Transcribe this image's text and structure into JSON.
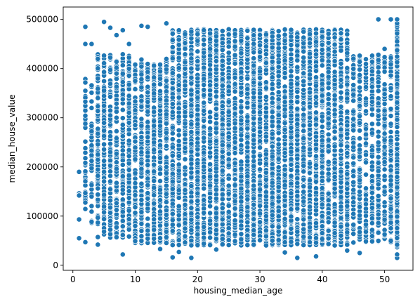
{
  "chart_data": {
    "type": "scatter",
    "title": "",
    "xlabel": "housing_median_age",
    "ylabel": "median_house_value",
    "xlim": [
      -1.55,
      54.55
    ],
    "ylim": [
      -10250,
      525200
    ],
    "xticks": [
      0,
      10,
      20,
      30,
      40,
      50
    ],
    "yticks": [
      0,
      100000,
      200000,
      300000,
      400000,
      500000
    ],
    "xtick_labels": [
      "0",
      "10",
      "20",
      "30",
      "40",
      "50"
    ],
    "ytick_labels": [
      "0",
      "100000",
      "200000",
      "300000",
      "400000",
      "500000"
    ],
    "grid": false,
    "legend": "none",
    "marker_color": "#1f77b4",
    "marker_edge": "#ffffff",
    "x_min": 1,
    "x_max": 52,
    "y_min": 14999,
    "y_max": 500001,
    "outliers": [
      {
        "x": 1,
        "y": 190000
      },
      {
        "x": 1,
        "y": 142000
      },
      {
        "x": 1,
        "y": 55000
      },
      {
        "x": 2,
        "y": 47000
      },
      {
        "x": 2,
        "y": 485000
      },
      {
        "x": 2,
        "y": 450000
      },
      {
        "x": 3,
        "y": 450000
      },
      {
        "x": 4,
        "y": 42000
      },
      {
        "x": 4,
        "y": 380000
      },
      {
        "x": 5,
        "y": 495000
      },
      {
        "x": 6,
        "y": 483000
      },
      {
        "x": 7,
        "y": 468000
      },
      {
        "x": 8,
        "y": 22000
      },
      {
        "x": 8,
        "y": 478000
      },
      {
        "x": 9,
        "y": 450000
      },
      {
        "x": 11,
        "y": 487000
      },
      {
        "x": 12,
        "y": 485000
      },
      {
        "x": 14,
        "y": 33000
      },
      {
        "x": 15,
        "y": 492000
      },
      {
        "x": 16,
        "y": 16000
      },
      {
        "x": 17,
        "y": 27000
      },
      {
        "x": 19,
        "y": 15000
      },
      {
        "x": 21,
        "y": 478000
      },
      {
        "x": 23,
        "y": 32000
      },
      {
        "x": 34,
        "y": 26000
      },
      {
        "x": 36,
        "y": 15000
      },
      {
        "x": 39,
        "y": 18000
      },
      {
        "x": 44,
        "y": 30000
      },
      {
        "x": 46,
        "y": 25000
      },
      {
        "x": 49,
        "y": 500001
      },
      {
        "x": 50,
        "y": 440000
      },
      {
        "x": 51,
        "y": 500001
      },
      {
        "x": 52,
        "y": 14999
      },
      {
        "x": 52,
        "y": 22000
      },
      {
        "x": 52,
        "y": 500001
      }
    ]
  }
}
